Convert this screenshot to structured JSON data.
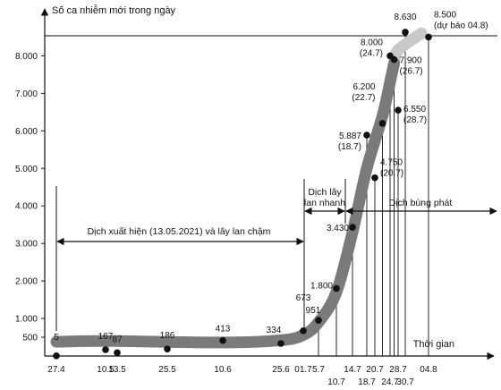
{
  "chart_data": {
    "type": "scatter",
    "ylabel": "Số ca nhiễm mới trong ngày",
    "xlabel": "Thời gian",
    "y_ticks": [
      "500",
      "1.000",
      "2.000",
      "3.000",
      "4.000",
      "5.000",
      "6.000",
      "7.000",
      "8.000"
    ],
    "y_tick_values": [
      500,
      1000,
      2000,
      3000,
      4000,
      5000,
      6000,
      7000,
      8000
    ],
    "x_ticks_upper": [
      "27.4",
      "10.5",
      "13.5",
      "25.5",
      "10.6",
      "25.6",
      "01.7",
      "5.7",
      "14.7",
      "20.7",
      "28.7",
      "04.8"
    ],
    "x_ticks_lower": [
      "10.7",
      "18.7",
      "24.7",
      "30.7"
    ],
    "points": [
      {
        "date": "27.4",
        "value": 5,
        "label": "5"
      },
      {
        "date": "10.5",
        "value": 167,
        "label": "167"
      },
      {
        "date": "13.5",
        "value": 87,
        "label": "87"
      },
      {
        "date": "25.5",
        "value": 186,
        "label": "186"
      },
      {
        "date": "10.6",
        "value": 413,
        "label": "413"
      },
      {
        "date": "25.6",
        "value": 334,
        "label": "334"
      },
      {
        "date": "01.7",
        "value": 673,
        "label": "673"
      },
      {
        "date": "5.7",
        "value": 951,
        "label": "951"
      },
      {
        "date": "10.7",
        "value": 1800,
        "label": "1.800"
      },
      {
        "date": "14.7",
        "value": 3430,
        "label": "3.430"
      },
      {
        "date": "18.7",
        "value": 5887,
        "label": "5.887",
        "sublabel": "(18.7)"
      },
      {
        "date": "20.7",
        "value": 4750,
        "label": "4.750",
        "sublabel": "(20.7)"
      },
      {
        "date": "22.7",
        "value": 6200,
        "label": "6.200",
        "sublabel": "(22.7)"
      },
      {
        "date": "24.7",
        "value": 8000,
        "label": "8.000",
        "sublabel": "(24.7)"
      },
      {
        "date": "26.7",
        "value": 7900,
        "label": "7.900",
        "sublabel": "(26.7)"
      },
      {
        "date": "28.7",
        "value": 6550,
        "label": "6.550",
        "sublabel": "(28.7)"
      },
      {
        "date": "30.7",
        "value": 8630,
        "label": "8.630"
      },
      {
        "date": "04.8",
        "value": 8500,
        "label": "8.500",
        "sublabel": "(dự báo 04.8)"
      }
    ],
    "annotations": {
      "phase1": "Dịch xuất hiện (13.05.2021) và lây lan chậm",
      "phase2_line1": "Dịch lây",
      "phase2_line2": "lan nhanh",
      "phase3": "Dịch bùng phát"
    }
  }
}
